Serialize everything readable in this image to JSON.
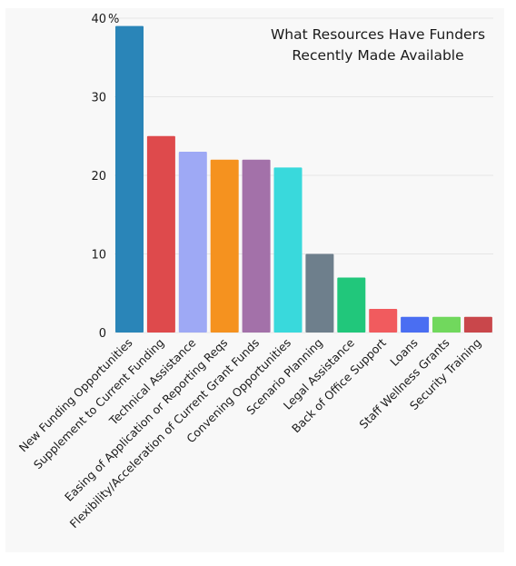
{
  "chart_data": {
    "type": "bar",
    "title_lines": [
      "What Resources Have Funders",
      "Recently Made Available"
    ],
    "y_unit_label": "%",
    "ylim": [
      0,
      40
    ],
    "yticks": [
      0,
      10,
      20,
      30,
      40
    ],
    "grid": true,
    "categories": [
      "New Funding Opportunities",
      "Supplement to Current Funding",
      "Technical Assistance",
      "Easing of Application or Reporting Reqs",
      "Flexibility/Acceleration of Current Grant Funds",
      "Convening Opportunities",
      "Scenario Planning",
      "Legal Assistance",
      "Back of Office Support",
      "Loans",
      "Staff Wellness Grants",
      "Security Training"
    ],
    "values": [
      39,
      25,
      23,
      22,
      22,
      21,
      10,
      7,
      3,
      2,
      2,
      2
    ],
    "colors": [
      "#2a85b8",
      "#de4a4c",
      "#9ea9f5",
      "#f5921f",
      "#a371a9",
      "#39d9dc",
      "#6e7f8c",
      "#21c77b",
      "#f15b5e",
      "#4a6ef2",
      "#71d85d",
      "#c9474b"
    ]
  }
}
